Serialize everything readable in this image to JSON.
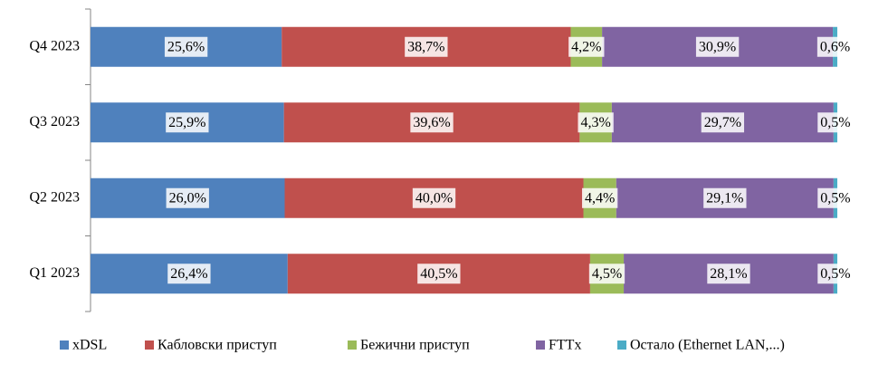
{
  "chart_data": {
    "type": "stacked-bar-horizontal",
    "categories": [
      "Q4 2023",
      "Q3 2023",
      "Q2 2023",
      "Q1 2023"
    ],
    "xlim": [
      0,
      100
    ],
    "legend": "bottom",
    "series": [
      {
        "name": "xDSL",
        "color": "#4f81bd",
        "values": [
          25.6,
          25.9,
          26.0,
          26.4
        ],
        "value_labels": [
          "25,6%",
          "25,9%",
          "26,0%",
          "26,4%"
        ]
      },
      {
        "name": "Кабловски приступ",
        "color": "#c0504d",
        "values": [
          38.7,
          39.6,
          40.0,
          40.5
        ],
        "value_labels": [
          "38,7%",
          "39,6%",
          "40,0%",
          "40,5%"
        ]
      },
      {
        "name": "Бежични приступ",
        "color": "#9bbb59",
        "values": [
          4.2,
          4.3,
          4.4,
          4.5
        ],
        "value_labels": [
          "4,2%",
          "4,3%",
          "4,4%",
          "4,5%"
        ]
      },
      {
        "name": "FTTx",
        "color": "#8064a2",
        "values": [
          30.9,
          29.7,
          29.1,
          28.1
        ],
        "value_labels": [
          "30,9%",
          "29,7%",
          "29,1%",
          "28,1%"
        ]
      },
      {
        "name": "Остало (Ethernet LAN,...)",
        "color": "#4bacc6",
        "values": [
          0.6,
          0.5,
          0.5,
          0.5
        ],
        "value_labels": [
          "0,6%",
          "0,5%",
          "0,5%",
          "0,5%"
        ]
      }
    ]
  }
}
